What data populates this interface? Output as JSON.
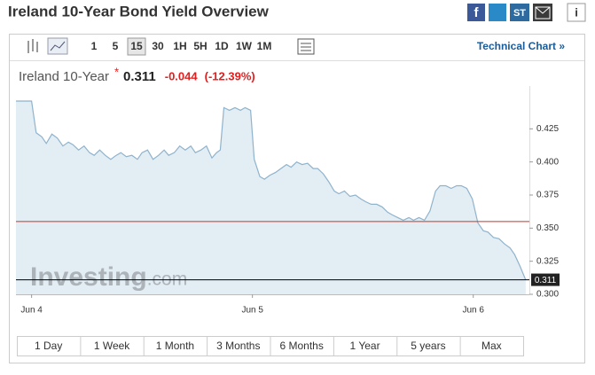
{
  "header": {
    "title": "Ireland 10-Year Bond Yield Overview",
    "stocktwits": "ST"
  },
  "toolbar": {
    "intervals": [
      "1",
      "5",
      "15",
      "30",
      "1H",
      "5H",
      "1D",
      "1W",
      "1M"
    ],
    "selected_interval": 2,
    "technical_link": "Technical Chart »"
  },
  "quote": {
    "name": "Ireland 10-Year",
    "star": "*",
    "last": 0.311,
    "change": -0.044,
    "change_pct": "(-12.39%)"
  },
  "chart_data": {
    "type": "area",
    "x": [
      -1.7,
      0,
      0.5,
      1.1,
      1.6,
      2.2,
      2.8,
      3.4,
      4.0,
      4.5,
      5.1,
      5.7,
      6.3,
      6.8,
      7.4,
      8.0,
      8.6,
      9.2,
      9.7,
      10.3,
      10.9,
      11.5,
      12.0,
      12.6,
      13.2,
      13.8,
      14.4,
      14.9,
      15.5,
      16.1,
      16.7,
      17.3,
      17.8,
      18.4,
      19.0,
      19.6,
      20.1,
      20.5,
      20.9,
      21.5,
      22.1,
      22.7,
      23.2,
      23.8,
      24.2,
      24.8,
      25.3,
      25.9,
      26.5,
      27.1,
      27.7,
      28.2,
      28.8,
      29.4,
      30.0,
      30.6,
      31.1,
      31.7,
      32.3,
      32.9,
      33.4,
      34.0,
      34.6,
      35.2,
      35.8,
      36.3,
      36.9,
      37.5,
      38.1,
      38.7,
      39.2,
      39.8,
      40.4,
      41.0,
      41.5,
      42.1,
      42.7,
      43.3,
      43.9,
      44.4,
      45.0,
      45.6,
      46.2,
      46.7,
      47.3,
      47.9,
      48.5,
      49.1,
      49.6,
      50.2,
      50.8,
      51.4,
      52.0,
      52.5,
      53.1,
      53.7
    ],
    "values": [
      0.446,
      0.446,
      0.422,
      0.419,
      0.414,
      0.421,
      0.418,
      0.412,
      0.415,
      0.413,
      0.409,
      0.412,
      0.407,
      0.405,
      0.409,
      0.405,
      0.402,
      0.405,
      0.407,
      0.404,
      0.405,
      0.402,
      0.407,
      0.409,
      0.402,
      0.405,
      0.409,
      0.405,
      0.407,
      0.412,
      0.409,
      0.412,
      0.407,
      0.409,
      0.412,
      0.403,
      0.407,
      0.409,
      0.441,
      0.439,
      0.441,
      0.439,
      0.441,
      0.439,
      0.402,
      0.389,
      0.387,
      0.39,
      0.392,
      0.395,
      0.398,
      0.396,
      0.4,
      0.398,
      0.399,
      0.395,
      0.395,
      0.391,
      0.385,
      0.378,
      0.376,
      0.378,
      0.374,
      0.375,
      0.372,
      0.37,
      0.368,
      0.368,
      0.366,
      0.362,
      0.36,
      0.358,
      0.356,
      0.358,
      0.356,
      0.358,
      0.356,
      0.363,
      0.378,
      0.382,
      0.382,
      0.38,
      0.382,
      0.382,
      0.38,
      0.372,
      0.354,
      0.348,
      0.347,
      0.343,
      0.342,
      0.338,
      0.335,
      0.33,
      0.321,
      0.311
    ],
    "color": "#8fb3cc",
    "fill": "#e3edf4",
    "xlim": [
      -1.7,
      54.1
    ],
    "ylim": [
      0.3,
      0.452
    ],
    "xticks": [
      {
        "value": 0,
        "label": "Jun 4"
      },
      {
        "value": 24,
        "label": "Jun 5"
      },
      {
        "value": 48,
        "label": "Jun 6"
      }
    ],
    "yticks": [
      {
        "value": 0.3,
        "label": "0.300"
      },
      0.325,
      {
        "value": 0.35,
        "label": "0.350"
      },
      0.375,
      {
        "value": 0.4,
        "label": "0.400"
      },
      0.425
    ],
    "reference_lines": [
      {
        "value": 0.355,
        "color": "#c0392b"
      },
      {
        "value": 0.311,
        "color": "#000000",
        "label": "0.311"
      }
    ],
    "watermark": {
      "brand": "Investing",
      "suffix": ".com"
    }
  },
  "ranges": [
    "1 Day",
    "1 Week",
    "1 Month",
    "3 Months",
    "6 Months",
    "1 Year",
    "5 years",
    "Max"
  ]
}
